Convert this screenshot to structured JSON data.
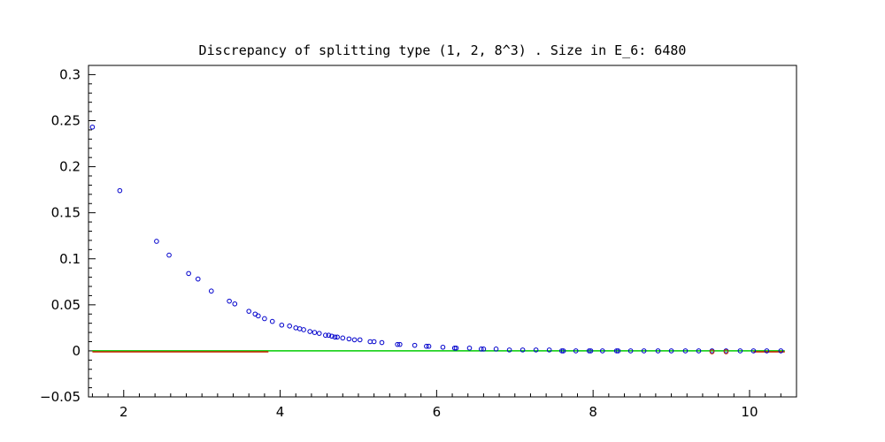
{
  "chart_data": {
    "type": "scatter",
    "title": "Discrepancy of splitting type (1, 2, 8^3) .  Size in E_6: 6480",
    "xlabel": "",
    "ylabel": "",
    "xlim": [
      1.55,
      10.6
    ],
    "ylim": [
      -0.05,
      0.31
    ],
    "x_ticks": [
      2,
      4,
      6,
      8,
      10
    ],
    "y_ticks": [
      -0.05,
      0,
      0.05,
      0.1,
      0.15,
      0.2,
      0.25,
      0.3
    ],
    "x_tick_labels": [
      "2",
      "4",
      "6",
      "8",
      "10"
    ],
    "y_tick_labels": [
      "−0.05",
      "0",
      "0.05",
      "0.1",
      "0.15",
      "0.2",
      "0.25",
      "0.3"
    ],
    "grid": false,
    "series": [
      {
        "color": "#0000cc",
        "x": [
          1.6,
          1.95,
          2.42,
          2.58,
          2.83,
          2.95,
          3.12,
          3.35,
          3.42,
          3.6,
          3.68,
          3.72,
          3.8,
          3.9,
          4.02,
          4.12,
          4.2,
          4.25,
          4.3,
          4.38,
          4.44,
          4.5,
          4.58,
          4.62,
          4.66,
          4.7,
          4.73,
          4.8,
          4.88,
          4.95,
          5.02,
          5.15,
          5.2,
          5.3,
          5.5,
          5.53,
          5.72,
          5.87,
          5.9,
          6.08,
          6.23,
          6.25,
          6.42,
          6.57,
          6.6,
          6.76,
          6.93,
          7.1,
          7.27,
          7.44,
          7.6,
          7.62,
          7.78,
          7.95,
          7.97,
          8.12,
          8.3,
          8.32,
          8.48,
          8.65,
          8.83,
          9.0,
          9.18,
          9.35,
          9.52,
          9.7,
          9.88,
          10.05,
          10.22,
          10.4
        ],
        "y": [
          0.243,
          0.174,
          0.119,
          0.104,
          0.084,
          0.078,
          0.065,
          0.054,
          0.051,
          0.043,
          0.04,
          0.038,
          0.035,
          0.032,
          0.028,
          0.027,
          0.025,
          0.024,
          0.023,
          0.021,
          0.02,
          0.019,
          0.017,
          0.017,
          0.016,
          0.015,
          0.015,
          0.014,
          0.013,
          0.012,
          0.012,
          0.01,
          0.01,
          0.009,
          0.007,
          0.007,
          0.006,
          0.005,
          0.005,
          0.004,
          0.003,
          0.003,
          0.003,
          0.002,
          0.002,
          0.002,
          0.001,
          0.001,
          0.001,
          0.001,
          0.0,
          0.0,
          0.0,
          0.0,
          0.0,
          0.0,
          0.0,
          0.0,
          0.0,
          0.0,
          0.0,
          0.0,
          0.0,
          0.0,
          0.0,
          0.0,
          0.0,
          0.0,
          0.0,
          0.0
        ]
      },
      {
        "color": "#cc3300",
        "x": [
          9.52,
          9.7
        ],
        "y": [
          -0.001,
          -0.001
        ]
      }
    ],
    "reference_lines": [
      {
        "color": "#00cc00",
        "y": 0,
        "x": [
          1.6,
          10.45
        ]
      },
      {
        "color": "#cc2200",
        "y": -0.001,
        "x": [
          1.6,
          3.85
        ]
      },
      {
        "color": "#cc2200",
        "y": -0.001,
        "x": [
          10.05,
          10.45
        ]
      }
    ],
    "legend": "none"
  }
}
